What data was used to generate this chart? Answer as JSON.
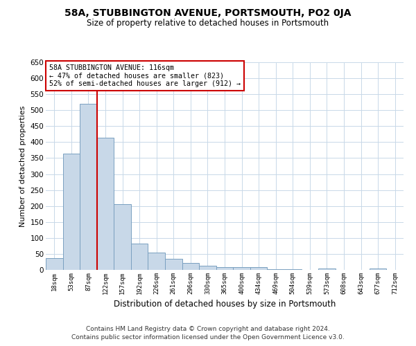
{
  "title": "58A, STUBBINGTON AVENUE, PORTSMOUTH, PO2 0JA",
  "subtitle": "Size of property relative to detached houses in Portsmouth",
  "xlabel": "Distribution of detached houses by size in Portsmouth",
  "ylabel": "Number of detached properties",
  "categories": [
    "18sqm",
    "53sqm",
    "87sqm",
    "122sqm",
    "157sqm",
    "192sqm",
    "226sqm",
    "261sqm",
    "296sqm",
    "330sqm",
    "365sqm",
    "400sqm",
    "434sqm",
    "469sqm",
    "504sqm",
    "539sqm",
    "573sqm",
    "608sqm",
    "643sqm",
    "677sqm",
    "712sqm"
  ],
  "values": [
    37,
    365,
    519,
    413,
    205,
    83,
    54,
    35,
    22,
    12,
    8,
    8,
    8,
    3,
    3,
    0,
    5,
    0,
    0,
    5,
    0
  ],
  "bar_color": "#c8d8e8",
  "bar_edge_color": "#7aA0c0",
  "vline_color": "#cc0000",
  "vline_x_index": 2.5,
  "annotation_text": "58A STUBBINGTON AVENUE: 116sqm\n← 47% of detached houses are smaller (823)\n52% of semi-detached houses are larger (912) →",
  "annotation_box_color": "#ffffff",
  "annotation_box_edge_color": "#cc0000",
  "grid_color": "#c8d8e8",
  "bg_color": "#ffffff",
  "footer1": "Contains HM Land Registry data © Crown copyright and database right 2024.",
  "footer2": "Contains public sector information licensed under the Open Government Licence v3.0.",
  "ylim": [
    0,
    650
  ],
  "yticks": [
    0,
    50,
    100,
    150,
    200,
    250,
    300,
    350,
    400,
    450,
    500,
    550,
    600,
    650
  ]
}
